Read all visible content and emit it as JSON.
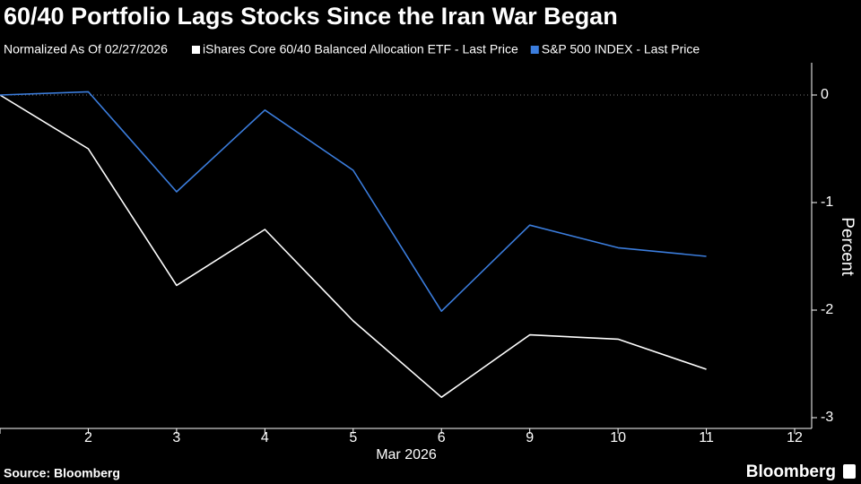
{
  "chart_data": {
    "type": "line",
    "title": "60/40 Portfolio Lags Stocks Since the Iran War Began",
    "subtitle": "Normalized As Of 02/27/2026",
    "categories": [
      null,
      "2",
      "3",
      "4",
      "5",
      "6",
      "9",
      "10",
      "11",
      "12"
    ],
    "x_label": "Mar 2026",
    "y_label": "Percent",
    "series": [
      {
        "name": "iShares Core 60/40 Balanced Allocation ETF - Last Price",
        "color": "#ffffff",
        "values": [
          0,
          -0.5,
          -1.77,
          -1.25,
          -2.1,
          -2.81,
          -2.23,
          -2.27,
          -2.55,
          null
        ]
      },
      {
        "name": "S&P 500 INDEX - Last Price",
        "color": "#3b7ddd",
        "values": [
          0,
          0.03,
          -0.9,
          -0.14,
          -0.7,
          -2.01,
          -1.21,
          -1.42,
          -1.5,
          null
        ]
      }
    ],
    "ylim": [
      -3.1,
      0.3
    ],
    "yticks": [
      0,
      -1,
      -2,
      -3
    ],
    "source": "Source: Bloomberg",
    "brand": "Bloomberg"
  }
}
